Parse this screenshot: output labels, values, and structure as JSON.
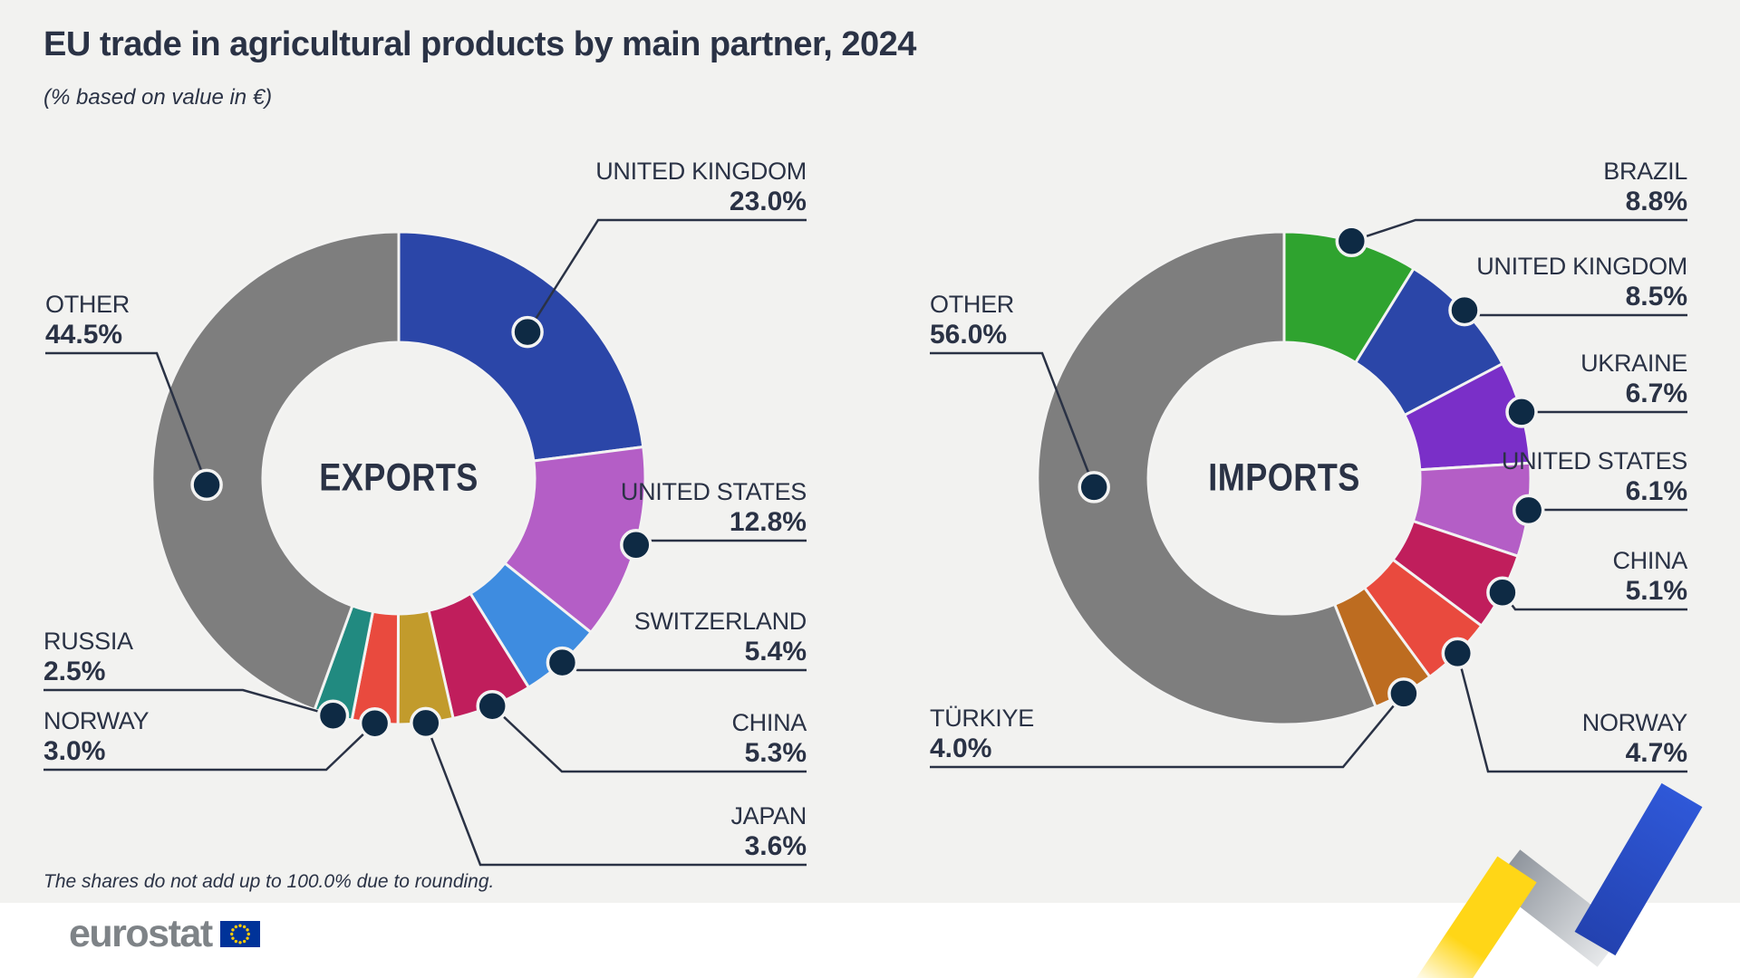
{
  "title": "EU trade in agricultural products by main partner, 2024",
  "subtitle": "(% based on value in €)",
  "note": "The shares do not add up to 100.0% due to rounding.",
  "footer": {
    "brand": "eurostat"
  },
  "colors": {
    "background": "#F2F2F0",
    "text": "#2A3245",
    "dot": "#0E2A44",
    "leader_line": "#2A3245",
    "footer_background": "#FFFFFF",
    "brand_gray": "#7E8387",
    "flag_blue": "#003399",
    "flag_stars": "#FFCC00",
    "ribbon_yellow": "#FFD617",
    "ribbon_gray": "#9EA2A8",
    "ribbon_blue": "#2A52CC"
  },
  "chart_data": [
    {
      "type": "pie",
      "variant": "donut",
      "title": "EXPORTS",
      "unit": "% based on value in €",
      "categories": [
        "UNITED KINGDOM",
        "UNITED STATES",
        "SWITZERLAND",
        "CHINA",
        "JAPAN",
        "NORWAY",
        "RUSSIA",
        "OTHER"
      ],
      "values": [
        23.0,
        12.8,
        5.4,
        5.3,
        3.6,
        3.0,
        2.5,
        44.5
      ],
      "slices": [
        {
          "label": "UNITED KINGDOM",
          "pct": "23.0%",
          "value": 23.0,
          "color": "#2B46A8"
        },
        {
          "label": "UNITED STATES",
          "pct": "12.8%",
          "value": 12.8,
          "color": "#B45EC6"
        },
        {
          "label": "SWITZERLAND",
          "pct": "5.4%",
          "value": 5.4,
          "color": "#3E8CE0"
        },
        {
          "label": "CHINA",
          "pct": "5.3%",
          "value": 5.3,
          "color": "#C01E5C"
        },
        {
          "label": "JAPAN",
          "pct": "3.6%",
          "value": 3.6,
          "color": "#C29B2C"
        },
        {
          "label": "NORWAY",
          "pct": "3.0%",
          "value": 3.0,
          "color": "#E94A3E"
        },
        {
          "label": "RUSSIA",
          "pct": "2.5%",
          "value": 2.5,
          "color": "#218A80"
        },
        {
          "label": "OTHER",
          "pct": "44.5%",
          "value": 44.5,
          "color": "#7E7E7E"
        }
      ]
    },
    {
      "type": "pie",
      "variant": "donut",
      "title": "IMPORTS",
      "unit": "% based on value in €",
      "categories": [
        "BRAZIL",
        "UNITED KINGDOM",
        "UKRAINE",
        "UNITED STATES",
        "CHINA",
        "NORWAY",
        "TÜRKIYE",
        "OTHER"
      ],
      "values": [
        8.8,
        8.5,
        6.7,
        6.1,
        5.1,
        4.7,
        4.0,
        56.0
      ],
      "slices": [
        {
          "label": "BRAZIL",
          "pct": "8.8%",
          "value": 8.8,
          "color": "#2FA32F"
        },
        {
          "label": "UNITED KINGDOM",
          "pct": "8.5%",
          "value": 8.5,
          "color": "#2B46A8"
        },
        {
          "label": "UKRAINE",
          "pct": "6.7%",
          "value": 6.7,
          "color": "#7A2FC8"
        },
        {
          "label": "UNITED STATES",
          "pct": "6.1%",
          "value": 6.1,
          "color": "#B45EC6"
        },
        {
          "label": "CHINA",
          "pct": "5.1%",
          "value": 5.1,
          "color": "#C01E5C"
        },
        {
          "label": "NORWAY",
          "pct": "4.7%",
          "value": 4.7,
          "color": "#E94A3E"
        },
        {
          "label": "TÜRKIYE",
          "pct": "4.0%",
          "value": 4.0,
          "color": "#BD6C20"
        },
        {
          "label": "OTHER",
          "pct": "56.0%",
          "value": 56.0,
          "color": "#7E7E7E"
        }
      ]
    }
  ]
}
